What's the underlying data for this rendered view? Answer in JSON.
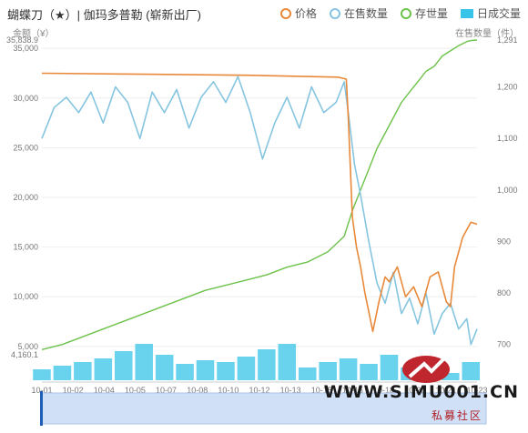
{
  "header": {
    "title": "蝴蝶刀（★）| 伽玛多普勒 (崭新出厂)"
  },
  "legend": {
    "price": "价格",
    "on_sale": "在售数量",
    "stock": "存世量",
    "daily_volume": "日成交量"
  },
  "axis": {
    "left_unit": "金额（¥）",
    "right_unit": "在售数量（件）"
  },
  "colors": {
    "price": "#e8893a",
    "on_sale": "#86c5e0",
    "stock": "#6cc24a",
    "daily_volume": "#37c4e8"
  },
  "chart_data": {
    "type": "line",
    "title": "蝴蝶刀（★）| 伽玛多普勒 (崭新出厂)",
    "xlabel": "",
    "ylabel": "金额（¥）",
    "y2label": "在售数量（件）",
    "ylim": [
      4160.1,
      35838.9
    ],
    "y2lim": [
      680,
      1291
    ],
    "yticks": [
      "35,838.9",
      "35,000",
      "30,000",
      "25,000",
      "20,000",
      "15,000",
      "10,000",
      "5,000",
      "4,160.1"
    ],
    "y2ticks": [
      "1,291",
      "1,200",
      "1,100",
      "1,000",
      "900",
      "800",
      "700"
    ],
    "x_tick_labels": [
      "10-01",
      "10-02",
      "10-04",
      "10-05",
      "10-07",
      "10-08",
      "10-10",
      "10-12",
      "10-13",
      "10-15",
      "10-16",
      "10-18",
      "10-20",
      "10-21",
      "10-23"
    ],
    "series": [
      {
        "name": "价格",
        "axis": "left",
        "x": [
          0,
          5,
          10,
          14.5,
          14.9,
          15.0,
          15.2,
          15.4,
          15.6,
          15.8,
          16.0,
          16.2,
          16.5,
          16.8,
          17.0,
          17.4,
          17.8,
          18.2,
          18.6,
          19.0,
          19.4,
          19.8,
          20.0,
          20.2,
          20.6,
          21.0,
          21.3
        ],
        "values": [
          32500,
          32400,
          32300,
          32100,
          31900,
          28000,
          18000,
          15000,
          13000,
          10500,
          8500,
          6500,
          9500,
          12000,
          11500,
          13000,
          10000,
          11000,
          9000,
          12000,
          12500,
          9500,
          9000,
          13000,
          16000,
          17500,
          17300
        ]
      },
      {
        "name": "在售数量",
        "axis": "right",
        "x": [
          0,
          0.6,
          1.2,
          1.8,
          2.4,
          3.0,
          3.6,
          4.2,
          4.8,
          5.4,
          6.0,
          6.6,
          7.2,
          7.8,
          8.4,
          9.0,
          9.6,
          10.2,
          10.8,
          11.4,
          12.0,
          12.6,
          13.2,
          13.8,
          14.4,
          14.8,
          15.0,
          15.3,
          15.6,
          16.0,
          16.4,
          16.8,
          17.2,
          17.6,
          18.0,
          18.4,
          18.8,
          19.2,
          19.6,
          20.0,
          20.4,
          20.8,
          21.0,
          21.3
        ],
        "values": [
          1100,
          1160,
          1180,
          1150,
          1190,
          1130,
          1200,
          1170,
          1100,
          1190,
          1150,
          1195,
          1120,
          1180,
          1210,
          1170,
          1220,
          1150,
          1060,
          1130,
          1180,
          1120,
          1200,
          1150,
          1170,
          1210,
          1150,
          1050,
          990,
          900,
          820,
          780,
          840,
          760,
          790,
          740,
          800,
          720,
          760,
          780,
          730,
          750,
          700,
          730
        ]
      },
      {
        "name": "存世量",
        "axis": "right",
        "x": [
          0,
          1,
          2,
          3,
          4,
          5,
          6,
          7,
          8,
          9,
          10,
          11,
          12,
          13,
          14,
          14.8,
          15.2,
          15.6,
          16.0,
          16.4,
          16.8,
          17.2,
          17.6,
          18.0,
          18.4,
          18.8,
          19.2,
          19.6,
          20.0,
          20.4,
          20.8,
          21.0,
          21.3
        ],
        "values": [
          690,
          700,
          715,
          730,
          745,
          760,
          775,
          790,
          805,
          815,
          825,
          835,
          850,
          860,
          880,
          910,
          960,
          1000,
          1040,
          1080,
          1110,
          1140,
          1170,
          1190,
          1210,
          1230,
          1240,
          1260,
          1270,
          1280,
          1288,
          1290,
          1291
        ]
      },
      {
        "name": "日成交量",
        "axis": "bar",
        "x": [
          0,
          1,
          2,
          3,
          4,
          5,
          6,
          7,
          8,
          9,
          10,
          11,
          12,
          13,
          14,
          15,
          16,
          17,
          18,
          19,
          20,
          21
        ],
        "values": [
          6,
          8,
          10,
          12,
          16,
          20,
          14,
          9,
          11,
          10,
          13,
          17,
          20,
          7,
          10,
          12,
          9,
          14,
          7,
          5,
          4,
          10
        ]
      }
    ],
    "grid": true,
    "legend_position": "top-right"
  },
  "watermark": {
    "domain": "WWW.SIMU001.CN",
    "subtitle": "私募社区"
  }
}
